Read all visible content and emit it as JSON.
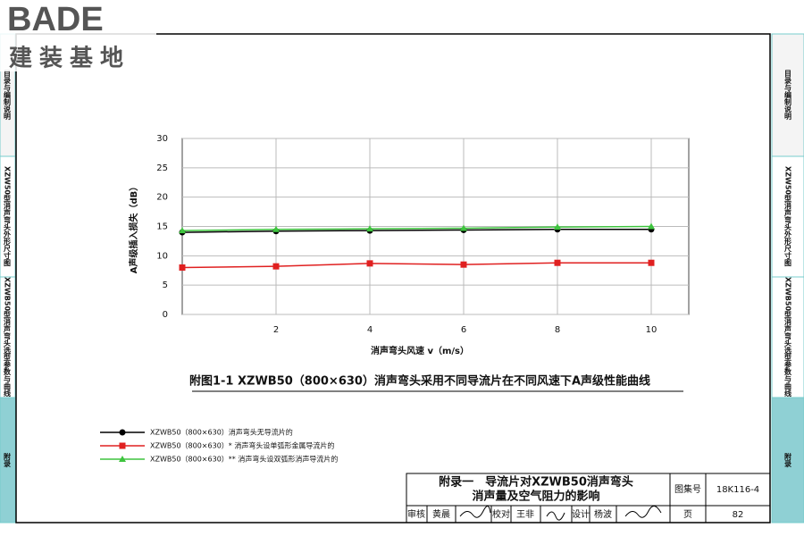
{
  "logo": {
    "brand": "BADE",
    "tagline": "建装基地"
  },
  "side_tabs": [
    "目录与编制说明",
    "XZW50型消声弯头外形尺寸图",
    "XZWB50型消声弯头选型参数与曲线",
    "附录"
  ],
  "chart_data": {
    "type": "line",
    "title": "附图1-1 XZWB50（800×630）消声弯头采用不同导流片在不同风速下A声级性能曲线",
    "xlabel": "消声弯头风速 v（m/s）",
    "ylabel": "A声级插入损失（dB）",
    "x": [
      0,
      2,
      4,
      6,
      8,
      10
    ],
    "series": [
      {
        "name": "XZWB50（800×630）消声弯头无导流片的",
        "color": "#000000",
        "marker": "circle",
        "values": [
          14,
          14.2,
          14.3,
          14.4,
          14.5,
          14.5
        ]
      },
      {
        "name": "XZWB50（800×630）* 消声弯头设单弧形金属导流片的",
        "color": "#e02020",
        "marker": "square",
        "values": [
          8,
          8.2,
          8.7,
          8.5,
          8.8,
          8.8
        ]
      },
      {
        "name": "XZWB50（800×630）** 消声弯头设双弧形消声导流片的",
        "color": "#3ec43e",
        "marker": "triangle",
        "values": [
          14.3,
          14.5,
          14.6,
          14.7,
          14.9,
          15.0
        ]
      }
    ],
    "xlim": [
      0,
      10.8
    ],
    "ylim": [
      0,
      30
    ],
    "xticks": [
      2,
      4,
      6,
      8,
      10
    ],
    "yticks": [
      0,
      5,
      10,
      15,
      20,
      25,
      30
    ],
    "grid": true
  },
  "title_block": {
    "title_line1": "附录一　导流片对XZWB50消声弯头",
    "title_line2": "消声量及空气阻力的影响",
    "atlas_label": "图集号",
    "atlas_no": "18K116-4",
    "review_label": "审核",
    "reviewer": "黄晨",
    "check_label": "校对",
    "checker": "王非",
    "design_label": "设计",
    "designer": "杨波",
    "page_label": "页",
    "page": "82"
  }
}
